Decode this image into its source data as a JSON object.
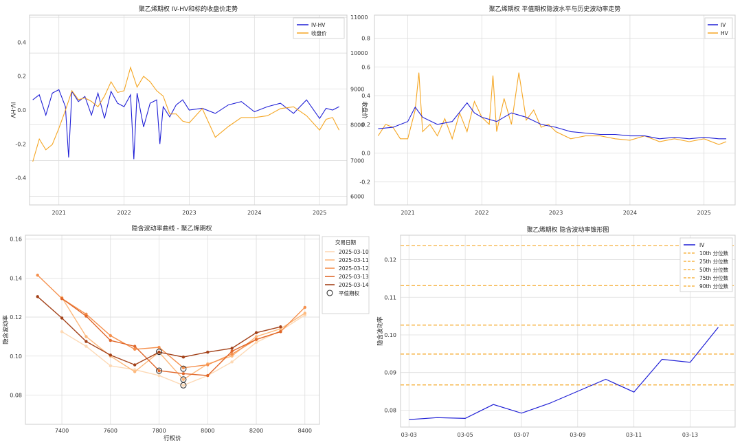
{
  "chart_data": [
    {
      "type": "line",
      "title": "聚乙烯期权 IV-HV和标的收盘价走势",
      "ylabel": "IV-HV",
      "ylabel_right": "收盘价",
      "x_ticks": [
        "2021",
        "2022",
        "2023",
        "2024",
        "2025"
      ],
      "xlim": [
        2020.55,
        2025.42
      ],
      "ylim": [
        -0.56,
        0.56
      ],
      "y_ticks": [
        -0.4,
        -0.2,
        0.0,
        0.2,
        0.4
      ],
      "y2lim": [
        5760,
        11060
      ],
      "y2_ticks": [
        6000,
        7000,
        8000,
        9000,
        10000,
        11000
      ],
      "series": [
        {
          "name": "IV-HV",
          "color": "#1f1fd6",
          "axis": "left",
          "x": [
            2020.6,
            2020.7,
            2020.8,
            2020.9,
            2021.0,
            2021.1,
            2021.15,
            2021.2,
            2021.3,
            2021.4,
            2021.5,
            2021.6,
            2021.7,
            2021.8,
            2021.9,
            2022.0,
            2022.1,
            2022.15,
            2022.2,
            2022.3,
            2022.4,
            2022.5,
            2022.55,
            2022.6,
            2022.7,
            2022.8,
            2022.9,
            2023.0,
            2023.2,
            2023.4,
            2023.6,
            2023.8,
            2024.0,
            2024.2,
            2024.4,
            2024.6,
            2024.8,
            2025.0,
            2025.1,
            2025.2,
            2025.3
          ],
          "y": [
            0.06,
            0.09,
            -0.03,
            0.1,
            0.12,
            0.02,
            -0.28,
            0.11,
            0.05,
            0.08,
            -0.03,
            0.1,
            -0.05,
            0.11,
            0.04,
            0.02,
            0.09,
            -0.29,
            0.1,
            -0.1,
            0.04,
            0.06,
            -0.2,
            0.02,
            -0.04,
            0.03,
            0.06,
            0.0,
            0.01,
            -0.02,
            0.03,
            0.05,
            -0.01,
            0.02,
            0.04,
            -0.02,
            0.06,
            -0.05,
            0.01,
            0.0,
            0.02
          ]
        },
        {
          "name": "收盘价",
          "color": "#f5a623",
          "axis": "right",
          "x": [
            2020.6,
            2020.7,
            2020.8,
            2020.9,
            2021.0,
            2021.1,
            2021.2,
            2021.3,
            2021.4,
            2021.5,
            2021.6,
            2021.7,
            2021.8,
            2021.9,
            2022.0,
            2022.1,
            2022.2,
            2022.3,
            2022.4,
            2022.5,
            2022.6,
            2022.7,
            2022.8,
            2022.9,
            2023.0,
            2023.2,
            2023.4,
            2023.6,
            2023.8,
            2024.0,
            2024.2,
            2024.4,
            2024.6,
            2024.8,
            2025.0,
            2025.1,
            2025.2,
            2025.3
          ],
          "y": [
            6970,
            7600,
            7300,
            7450,
            7900,
            8400,
            8950,
            8700,
            8750,
            8650,
            8500,
            8800,
            9200,
            8900,
            8950,
            9600,
            9050,
            9350,
            9200,
            8950,
            8800,
            8300,
            8300,
            8100,
            8050,
            8450,
            7650,
            7950,
            8200,
            8200,
            8250,
            8450,
            8500,
            8250,
            7850,
            8150,
            8200,
            7850
          ]
        }
      ],
      "legend": [
        "IV-HV",
        "收盘价"
      ],
      "legend_loc": "top-right",
      "grid": true
    },
    {
      "type": "line",
      "title": "聚乙烯期权 平值期权隐波水平与历史波动率走势",
      "x_ticks": [
        "2021",
        "2022",
        "2023",
        "2024",
        "2025"
      ],
      "xlim": [
        2020.55,
        2025.42
      ],
      "ylim": [
        -0.36,
        0.96
      ],
      "y_ticks": [
        -0.2,
        0.0,
        0.2,
        0.4,
        0.6,
        0.8
      ],
      "series": [
        {
          "name": "IV",
          "color": "#1f1fd6",
          "x": [
            2020.6,
            2020.8,
            2021.0,
            2021.1,
            2021.2,
            2021.4,
            2021.6,
            2021.8,
            2021.9,
            2022.0,
            2022.2,
            2022.4,
            2022.6,
            2022.8,
            2023.0,
            2023.2,
            2023.4,
            2023.6,
            2023.8,
            2024.0,
            2024.2,
            2024.4,
            2024.6,
            2024.8,
            2025.0,
            2025.2,
            2025.3
          ],
          "y": [
            0.17,
            0.18,
            0.22,
            0.32,
            0.25,
            0.2,
            0.22,
            0.35,
            0.28,
            0.25,
            0.22,
            0.28,
            0.25,
            0.2,
            0.18,
            0.15,
            0.14,
            0.13,
            0.13,
            0.12,
            0.12,
            0.1,
            0.11,
            0.1,
            0.11,
            0.1,
            0.1
          ]
        },
        {
          "name": "HV",
          "color": "#f5a623",
          "x": [
            2020.6,
            2020.7,
            2020.8,
            2020.9,
            2021.0,
            2021.1,
            2021.15,
            2021.2,
            2021.3,
            2021.4,
            2021.5,
            2021.6,
            2021.7,
            2021.8,
            2021.9,
            2022.0,
            2022.1,
            2022.15,
            2022.2,
            2022.3,
            2022.4,
            2022.5,
            2022.6,
            2022.7,
            2022.8,
            2022.9,
            2023.0,
            2023.2,
            2023.4,
            2023.6,
            2023.8,
            2024.0,
            2024.2,
            2024.4,
            2024.6,
            2024.8,
            2025.0,
            2025.2,
            2025.3
          ],
          "y": [
            0.12,
            0.2,
            0.18,
            0.1,
            0.1,
            0.3,
            0.56,
            0.15,
            0.2,
            0.12,
            0.24,
            0.1,
            0.28,
            0.15,
            0.36,
            0.25,
            0.2,
            0.54,
            0.15,
            0.38,
            0.2,
            0.56,
            0.23,
            0.3,
            0.18,
            0.2,
            0.15,
            0.1,
            0.12,
            0.12,
            0.1,
            0.09,
            0.12,
            0.08,
            0.1,
            0.08,
            0.1,
            0.06,
            0.08
          ]
        }
      ],
      "legend": [
        "IV",
        "HV"
      ],
      "legend_loc": "top-right",
      "grid": true
    },
    {
      "type": "line",
      "title": "隐含波动率曲线 - 聚乙烯期权",
      "xlabel": "行权价",
      "ylabel": "隐含波动率",
      "xlim": [
        7250,
        8460
      ],
      "ylim": [
        0.065,
        0.162
      ],
      "x_ticks": [
        7400,
        7600,
        7800,
        8000,
        8200,
        8400
      ],
      "y_ticks": [
        0.08,
        0.1,
        0.12,
        0.14,
        0.16
      ],
      "strikes": [
        7300,
        7400,
        7500,
        7600,
        7700,
        7800,
        7900,
        8000,
        8100,
        8200,
        8300,
        8400
      ],
      "legend_title": "交易日期",
      "series": [
        {
          "name": "2025-03-10",
          "color": "#fdd9b5",
          "x": [
            7400,
            7500,
            7600,
            7700,
            7800,
            7900,
            8000,
            8100,
            8200,
            8300,
            8400
          ],
          "y": [
            0.1125,
            0.105,
            0.095,
            0.093,
            0.09,
            0.085,
            0.09,
            0.097,
            0.107,
            0.113,
            0.121
          ]
        },
        {
          "name": "2025-03-11",
          "color": "#fdb97d",
          "x": [
            7400,
            7500,
            7600,
            7700,
            7800,
            7900,
            8000,
            8100,
            8200,
            8300,
            8400
          ],
          "y": [
            0.13,
            0.11,
            0.1,
            0.092,
            0.102,
            0.088,
            0.096,
            0.1,
            0.11,
            0.114,
            0.122
          ]
        },
        {
          "name": "2025-03-12",
          "color": "#f5904d",
          "x": [
            7300,
            7400,
            7500,
            7600,
            7700,
            7800,
            7900,
            8000,
            8100,
            8200,
            8300,
            8400
          ],
          "y": [
            0.1415,
            0.1295,
            0.1215,
            0.1105,
            0.1035,
            0.1045,
            0.094,
            0.0955,
            0.101,
            0.1085,
            0.1125,
            0.125
          ]
        },
        {
          "name": "2025-03-13",
          "color": "#e0672a",
          "x": [
            7400,
            7500,
            7600,
            7700,
            7800,
            7900,
            8000,
            8100,
            8200,
            8300
          ],
          "y": [
            0.1295,
            0.1205,
            0.108,
            0.105,
            0.0925,
            0.091,
            0.09,
            0.1025,
            0.1085,
            0.1125
          ]
        },
        {
          "name": "2025-03-14",
          "color": "#a3421a",
          "x": [
            7300,
            7400,
            7500,
            7600,
            7700,
            7800,
            7900,
            8000,
            8100,
            8200,
            8300
          ],
          "y": [
            0.1305,
            0.1195,
            0.1075,
            0.1005,
            0.0955,
            0.102,
            0.0995,
            0.102,
            0.104,
            0.112,
            0.115
          ]
        }
      ],
      "atm_label": "平值期权",
      "atm_points": [
        {
          "x": 7800,
          "y": 0.1022
        },
        {
          "x": 7800,
          "y": 0.0925
        },
        {
          "x": 7900,
          "y": 0.0935
        },
        {
          "x": 7900,
          "y": 0.088
        },
        {
          "x": 7900,
          "y": 0.085
        }
      ],
      "grid": true
    },
    {
      "type": "line",
      "title": "聚乙烯期权 隐含波动率锥形图",
      "ylabel": "隐含波动率",
      "x_ticks": [
        "03-03",
        "03-05",
        "03-07",
        "03-09",
        "03-11",
        "03-13"
      ],
      "xlim": [
        -0.3,
        11.6
      ],
      "ylim": [
        0.0755,
        0.1265
      ],
      "y_ticks": [
        0.08,
        0.09,
        0.1,
        0.11,
        0.12
      ],
      "series": [
        {
          "name": "IV",
          "color": "#1f1fd6",
          "x": [
            0,
            1,
            2,
            3,
            4,
            5,
            6,
            7,
            8,
            9,
            10,
            11
          ],
          "y": [
            0.0775,
            0.078,
            0.0778,
            0.0815,
            0.0792,
            0.0818,
            0.085,
            0.0882,
            0.0848,
            0.0935,
            0.0927,
            0.102
          ]
        }
      ],
      "percentiles": [
        {
          "name": "10th 分位数",
          "value": 0.0867
        },
        {
          "name": "25th 分位数",
          "value": 0.0949
        },
        {
          "name": "50th 分位数",
          "value": 0.1026
        },
        {
          "name": "75th 分位数",
          "value": 0.1131
        },
        {
          "name": "90th 分位数",
          "value": 0.1237
        }
      ],
      "percentile_color": "#f5a623",
      "legend_loc": "top-right",
      "grid": true
    }
  ]
}
